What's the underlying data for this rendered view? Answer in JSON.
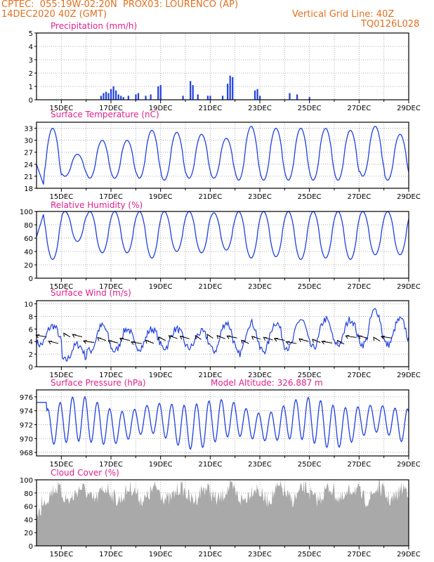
{
  "header": {
    "line1": "CPTEC:  055:19W-02:20N  PROX03: LOURENCO (AP)",
    "line2": "14DEC2020 40Z (GMT)",
    "grid_note": "Vertical Grid Line: 40Z",
    "code": "TQ0126L028"
  },
  "colors": {
    "header": "#e07020",
    "title": "#e0208c",
    "line": "#2040e0",
    "bar": "#2040e0",
    "cloud": "#a9a9a9",
    "arrow": "#000000"
  },
  "chart_data": [
    {
      "id": "precip",
      "type": "bar",
      "title": "Precipitation (mm/h)",
      "x_tick_labels": [
        "15DEC",
        "17DEC",
        "19DEC",
        "21DEC",
        "23DEC",
        "25DEC",
        "27DEC",
        "29DEC"
      ],
      "x_range_days": [
        14.0,
        29.0
      ],
      "ylim": [
        0,
        5
      ],
      "y_ticks": [
        0,
        1,
        2,
        3,
        4,
        5
      ],
      "values": [
        [
          16.6,
          0.3
        ],
        [
          16.7,
          0.5
        ],
        [
          16.8,
          0.6
        ],
        [
          16.9,
          0.5
        ],
        [
          17.0,
          0.8
        ],
        [
          17.1,
          1.0
        ],
        [
          17.2,
          0.7
        ],
        [
          17.3,
          0.4
        ],
        [
          17.4,
          0.3
        ],
        [
          17.5,
          0.2
        ],
        [
          17.7,
          0.3
        ],
        [
          18.0,
          0.4
        ],
        [
          18.1,
          0.5
        ],
        [
          18.4,
          0.3
        ],
        [
          18.6,
          0.4
        ],
        [
          18.9,
          1.0
        ],
        [
          19.0,
          1.1
        ],
        [
          19.9,
          0.3
        ],
        [
          20.2,
          1.4
        ],
        [
          20.3,
          1.1
        ],
        [
          20.5,
          0.4
        ],
        [
          20.9,
          0.3
        ],
        [
          21.0,
          0.3
        ],
        [
          21.5,
          0.3
        ],
        [
          21.7,
          1.2
        ],
        [
          21.8,
          1.8
        ],
        [
          21.9,
          1.7
        ],
        [
          22.8,
          0.7
        ],
        [
          22.9,
          0.8
        ],
        [
          23.0,
          0.3
        ],
        [
          24.2,
          0.5
        ],
        [
          24.5,
          0.4
        ],
        [
          25.0,
          0.2
        ]
      ]
    },
    {
      "id": "temp",
      "type": "line",
      "title": "Surface Temperature (nC)",
      "x_tick_labels": [
        "15DEC",
        "17DEC",
        "19DEC",
        "21DEC",
        "23DEC",
        "25DEC",
        "27DEC",
        "29DEC"
      ],
      "x_range_days": [
        14.0,
        29.0
      ],
      "ylim": [
        18,
        34.5
      ],
      "y_ticks": [
        18,
        21,
        24,
        27,
        30,
        33
      ],
      "day_peaks": [
        33.0,
        26.5,
        30.0,
        30.0,
        32.5,
        32.0,
        31.5,
        30.5,
        33.5,
        33.0,
        33.0,
        33.0,
        32.5,
        33.5,
        31.5,
        32.0
      ],
      "day_minima": [
        19.0,
        21.0,
        20.5,
        20.5,
        20.5,
        20.0,
        20.5,
        20.5,
        20.0,
        20.0,
        20.0,
        20.0,
        20.0,
        21.0,
        20.0,
        20.0
      ]
    },
    {
      "id": "rh",
      "type": "line",
      "title": "Relative Humidity (%)",
      "x_tick_labels": [
        "15DEC",
        "17DEC",
        "19DEC",
        "21DEC",
        "23DEC",
        "25DEC",
        "27DEC",
        "29DEC"
      ],
      "x_range_days": [
        14.0,
        29.0
      ],
      "ylim": [
        0,
        100
      ],
      "y_ticks": [
        0,
        20,
        40,
        60,
        80,
        100
      ],
      "day_minima": [
        28,
        55,
        38,
        38,
        30,
        40,
        38,
        42,
        30,
        32,
        28,
        30,
        28,
        35,
        35,
        40
      ],
      "day_maxima": [
        100,
        100,
        100,
        100,
        100,
        100,
        100,
        98,
        100,
        100,
        100,
        100,
        100,
        100,
        100,
        100
      ]
    },
    {
      "id": "wind",
      "type": "line",
      "title": "Surface Wind (m/s)",
      "x_tick_labels": [
        "15DEC",
        "17DEC",
        "19DEC",
        "21DEC",
        "23DEC",
        "25DEC",
        "27DEC",
        "29DEC"
      ],
      "x_range_days": [
        14.0,
        29.0
      ],
      "ylim": [
        0,
        10.5
      ],
      "y_ticks": [
        0,
        2,
        4,
        6,
        8,
        10
      ],
      "day_maxima": [
        6.5,
        3.5,
        6.5,
        6.0,
        6.0,
        6.0,
        5.5,
        7.0,
        7.0,
        7.0,
        7.5,
        7.5,
        7.5,
        9.0,
        7.5,
        6.0
      ],
      "day_minima": [
        3.5,
        1.0,
        2.5,
        2.5,
        3.0,
        3.0,
        3.0,
        2.5,
        2.0,
        2.5,
        3.0,
        3.0,
        3.5,
        3.5,
        3.5,
        3.5
      ],
      "arrow_count": 30
    },
    {
      "id": "pres",
      "type": "line",
      "title": "Surface Pressure (hPa)",
      "annotation": "Model Altitude: 326.887 m",
      "x_tick_labels": [
        "15DEC",
        "17DEC",
        "19DEC",
        "21DEC",
        "23DEC",
        "25DEC",
        "27DEC",
        "29DEC"
      ],
      "x_range_days": [
        14.0,
        29.0
      ],
      "ylim": [
        967.5,
        977.0
      ],
      "y_ticks": [
        968,
        970,
        972,
        974,
        976
      ],
      "semidiurnal_max": 975.5,
      "semidiurnal_min": 969.0
    },
    {
      "id": "cloud",
      "type": "area",
      "title": "Cloud Cover (%)",
      "x_tick_labels": [
        "15DEC",
        "17DEC",
        "19DEC",
        "21DEC",
        "23DEC",
        "25DEC",
        "27DEC",
        "29DEC"
      ],
      "x_range_days": [
        14.0,
        29.0
      ],
      "ylim": [
        0,
        100
      ],
      "y_ticks": [
        0,
        20,
        40,
        60,
        80,
        100
      ],
      "typical_range": [
        55,
        100
      ]
    }
  ]
}
